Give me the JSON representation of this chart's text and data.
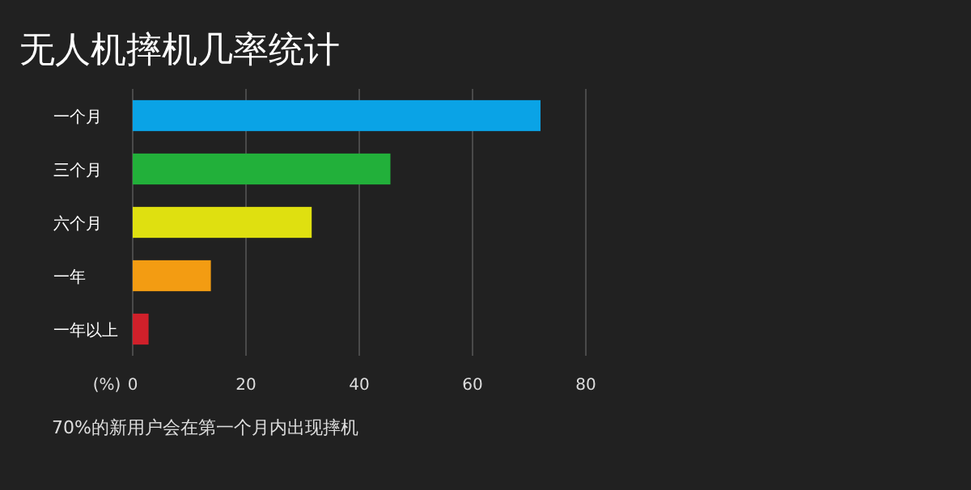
{
  "chart_data": {
    "type": "bar",
    "orientation": "horizontal",
    "title": "无人机摔机几率统计",
    "categories": [
      "一个月",
      "三个月",
      "六个月",
      "一年",
      "一年以上"
    ],
    "values": [
      72,
      45.5,
      31.6,
      13.8,
      2.8
    ],
    "colors": [
      "#0aa3e6",
      "#22b03a",
      "#dfe010",
      "#f39c12",
      "#d0202a"
    ],
    "xlabel": "(%)",
    "xlim": [
      0,
      80
    ],
    "xticks": [
      0,
      20,
      40,
      60,
      80
    ],
    "grid": "x",
    "annotations": [
      "70%的新用户会在第一个月内出现摔机"
    ]
  }
}
